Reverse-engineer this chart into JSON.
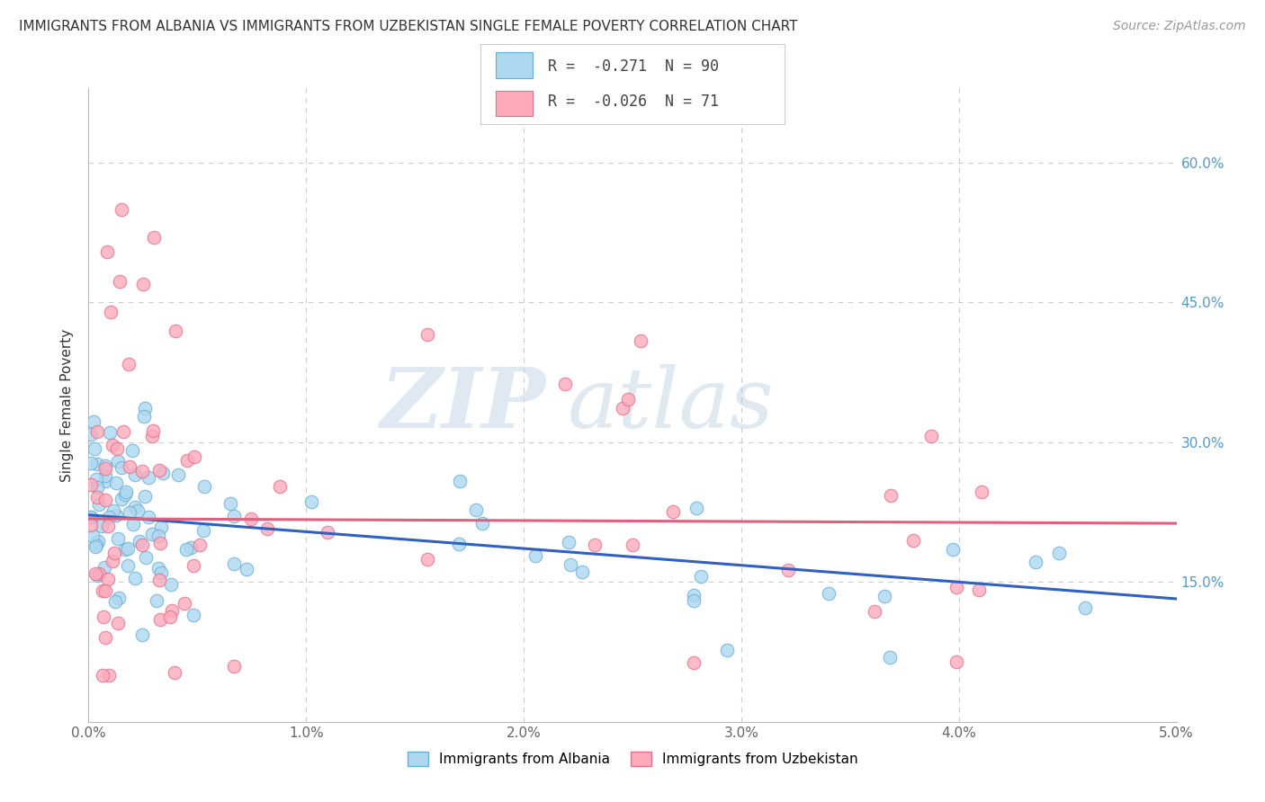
{
  "title": "IMMIGRANTS FROM ALBANIA VS IMMIGRANTS FROM UZBEKISTAN SINGLE FEMALE POVERTY CORRELATION CHART",
  "source": "Source: ZipAtlas.com",
  "ylabel": "Single Female Poverty",
  "xlim": [
    0.0,
    0.05
  ],
  "ylim": [
    0.0,
    0.68
  ],
  "xticks": [
    0.0,
    0.01,
    0.02,
    0.03,
    0.04,
    0.05
  ],
  "xticklabels": [
    "0.0%",
    "1.0%",
    "2.0%",
    "3.0%",
    "4.0%",
    "5.0%"
  ],
  "ytick_vals": [
    0.15,
    0.3,
    0.45,
    0.6
  ],
  "yticklabels": [
    "15.0%",
    "30.0%",
    "45.0%",
    "60.0%"
  ],
  "albania_color": "#ADD8F0",
  "albania_edge_color": "#6AAED6",
  "uzbekistan_color": "#FFAABB",
  "uzbekistan_edge_color": "#E07090",
  "albania_line_color": "#3060C0",
  "uzbekistan_line_color": "#E06080",
  "albania_R": -0.271,
  "albania_N": 90,
  "uzbekistan_R": -0.026,
  "uzbekistan_N": 71,
  "legend_label_albania": "Immigrants from Albania",
  "legend_label_uzbekistan": "Immigrants from Uzbekistan",
  "watermark_zip": "ZIP",
  "watermark_atlas": "atlas",
  "background_color": "#FFFFFF",
  "grid_color": "#CCCCCC",
  "title_color": "#333333",
  "source_color": "#999999",
  "right_tick_color": "#5599CC",
  "albania_line_intercept": 0.222,
  "albania_line_slope": -1.8,
  "uzbekistan_line_intercept": 0.218,
  "uzbekistan_line_slope": -0.1
}
